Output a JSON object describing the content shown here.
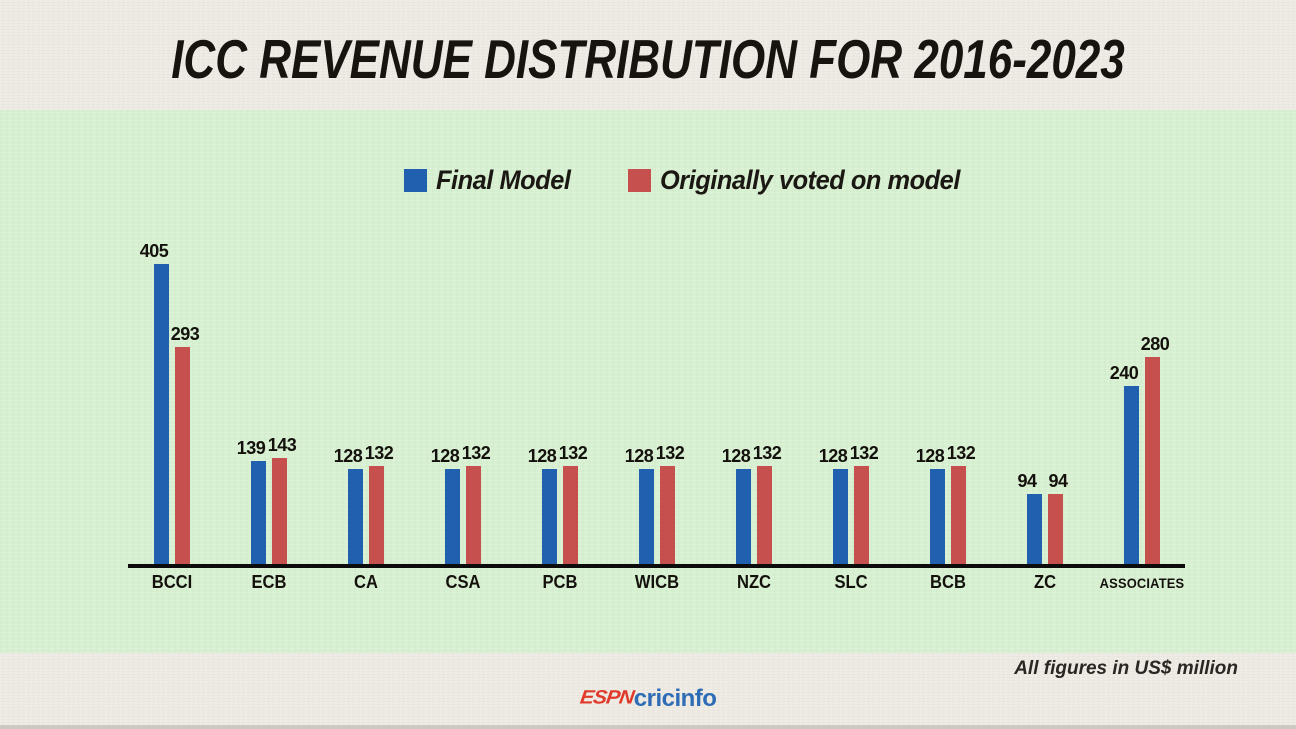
{
  "title": "ICC REVENUE DISTRIBUTION FOR 2016-2023",
  "legend": [
    {
      "label": "Final Model",
      "color": "#2160ae"
    },
    {
      "label": "Originally voted on model",
      "color": "#c5504e"
    }
  ],
  "footnote": "All figures in US$ million",
  "logo": {
    "espn": "ESPN",
    "cricinfo": "cricinfo"
  },
  "colors": {
    "background_cream": "#efece5",
    "background_green": "#d8f0d2",
    "axis": "#0c0c0c",
    "text": "#17140f",
    "espn_red": "#e03a2c",
    "cricinfo_blue": "#2e6cb5"
  },
  "chart_data": {
    "type": "bar",
    "title": "ICC REVENUE DISTRIBUTION FOR 2016-2023",
    "categories": [
      "BCCI",
      "ECB",
      "CA",
      "CSA",
      "PCB",
      "WICB",
      "NZC",
      "SLC",
      "BCB",
      "ZC",
      "ASSOCIATES"
    ],
    "series": [
      {
        "name": "Final Model",
        "color": "#2160ae",
        "values": [
          405,
          139,
          128,
          128,
          128,
          128,
          128,
          128,
          128,
          94,
          240
        ]
      },
      {
        "name": "Originally voted on model",
        "color": "#c5504e",
        "values": [
          293,
          143,
          132,
          132,
          132,
          132,
          132,
          132,
          132,
          94,
          280
        ]
      }
    ],
    "xlabel": "",
    "ylabel": "",
    "units": "US$ million",
    "ylim": [
      0,
      420
    ],
    "grid": false,
    "legend_position": "top-center",
    "value_labels": true
  }
}
